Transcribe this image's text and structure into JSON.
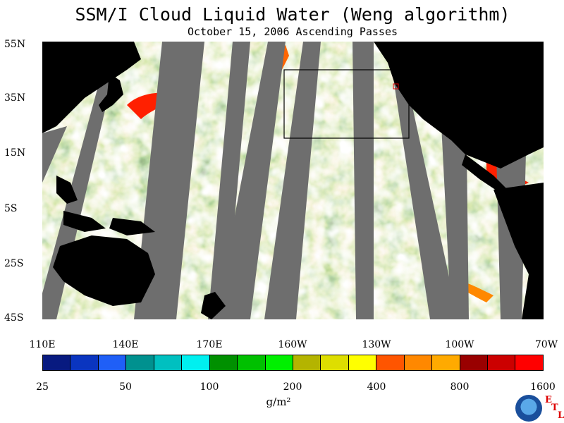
{
  "title": "SSM/I Cloud Liquid Water (Weng algorithm)",
  "subtitle": "October 15, 2006  Ascending Passes",
  "lat_labels": [
    "55N",
    "35N",
    "15N",
    "5S",
    "25S",
    "45S"
  ],
  "lon_labels": [
    "110E",
    "140E",
    "170E",
    "160W",
    "130W",
    "100W",
    "70W"
  ],
  "colorbar": {
    "colors": [
      "#081a80",
      "#0a35c0",
      "#1f5ff7",
      "#00918f",
      "#00c0c0",
      "#00f0f0",
      "#009000",
      "#00c000",
      "#00f000",
      "#b4b400",
      "#dede00",
      "#ffff00",
      "#ff5500",
      "#ff8800",
      "#ffaa00",
      "#990000",
      "#cc0000",
      "#ff0000"
    ],
    "labels": [
      "25",
      "50",
      "100",
      "200",
      "400",
      "800",
      "1600"
    ],
    "units": "g/m²"
  },
  "logo": {
    "name": "NOAA",
    "letters": [
      "E",
      "T",
      "L"
    ]
  },
  "colors": {
    "land": "#000000",
    "missing_swath": "#6e6e6e",
    "ocean_clear": "#ffffff"
  }
}
